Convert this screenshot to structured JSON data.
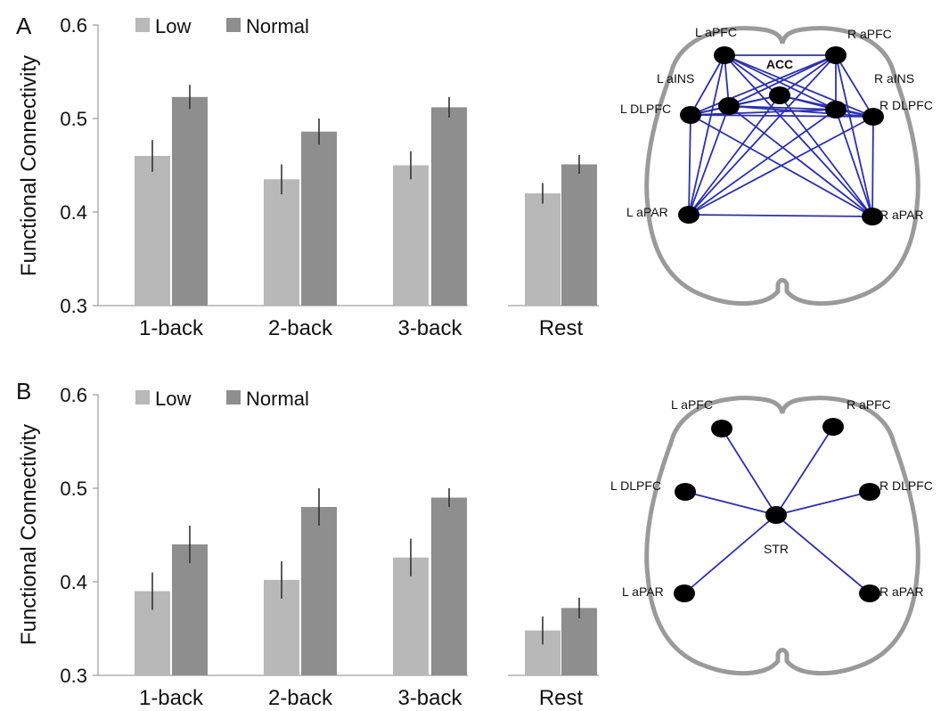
{
  "panels": [
    {
      "label": "A",
      "chart_data": {
        "type": "bar",
        "ylabel": "Functional Connectivity",
        "ylim": [
          0.3,
          0.6
        ],
        "yticks": [
          "0.3",
          "0.4",
          "0.5",
          "0.6"
        ],
        "categories": [
          "1-back",
          "2-back",
          "3-back",
          "Rest"
        ],
        "series": [
          {
            "name": "Low",
            "values": [
              0.46,
              0.435,
              0.45,
              0.42
            ],
            "errors": [
              0.017,
              0.016,
              0.015,
              0.011
            ]
          },
          {
            "name": "Normal",
            "values": [
              0.523,
              0.486,
              0.512,
              0.451
            ],
            "errors": [
              0.013,
              0.014,
              0.011,
              0.01
            ]
          }
        ],
        "legend_position": "top-left",
        "grid": false
      },
      "diagram": {
        "nodes": [
          {
            "id": "laPFC",
            "label": "L aPFC"
          },
          {
            "id": "raPFC",
            "label": "R aPFC"
          },
          {
            "id": "ACC",
            "label": "ACC"
          },
          {
            "id": "laINS",
            "label": "L aINS"
          },
          {
            "id": "raINS",
            "label": "R aINS"
          },
          {
            "id": "lDLPFC",
            "label": "L DLPFC"
          },
          {
            "id": "rDLPFC",
            "label": "R DLPFC"
          },
          {
            "id": "laPAR",
            "label": "L aPAR"
          },
          {
            "id": "raPAR",
            "label": "R aPAR"
          }
        ],
        "edges": "all-pairs",
        "edge_color": "#2b2fb3"
      }
    },
    {
      "label": "B",
      "chart_data": {
        "type": "bar",
        "ylabel": "Functional Connectivity",
        "ylim": [
          0.3,
          0.6
        ],
        "yticks": [
          "0.3",
          "0.4",
          "0.5",
          "0.6"
        ],
        "categories": [
          "1-back",
          "2-back",
          "3-back",
          "Rest"
        ],
        "series": [
          {
            "name": "Low",
            "values": [
              0.39,
              0.402,
              0.426,
              0.348
            ],
            "errors": [
              0.02,
              0.02,
              0.02,
              0.015
            ]
          },
          {
            "name": "Normal",
            "values": [
              0.44,
              0.48,
              0.49,
              0.372
            ],
            "errors": [
              0.02,
              0.02,
              0.01,
              0.011
            ]
          }
        ],
        "legend_position": "top-left",
        "grid": false
      },
      "diagram": {
        "nodes": [
          {
            "id": "laPFC",
            "label": "L aPFC"
          },
          {
            "id": "raPFC",
            "label": "R aPFC"
          },
          {
            "id": "lDLPFC",
            "label": "L DLPFC"
          },
          {
            "id": "rDLPFC",
            "label": "R DLPFC"
          },
          {
            "id": "STR",
            "label": "STR"
          },
          {
            "id": "laPAR",
            "label": "L aPAR"
          },
          {
            "id": "raPAR",
            "label": "R aPAR"
          }
        ],
        "edges": "hub:STR",
        "edge_color": "#2b2fb3"
      }
    }
  ],
  "colors": {
    "low": "#b8b8b8",
    "normal": "#8e8e8e",
    "error_bar": "#333333",
    "axis": "#888888",
    "brain_outline": "#9a9a9a",
    "node": "#000000"
  }
}
